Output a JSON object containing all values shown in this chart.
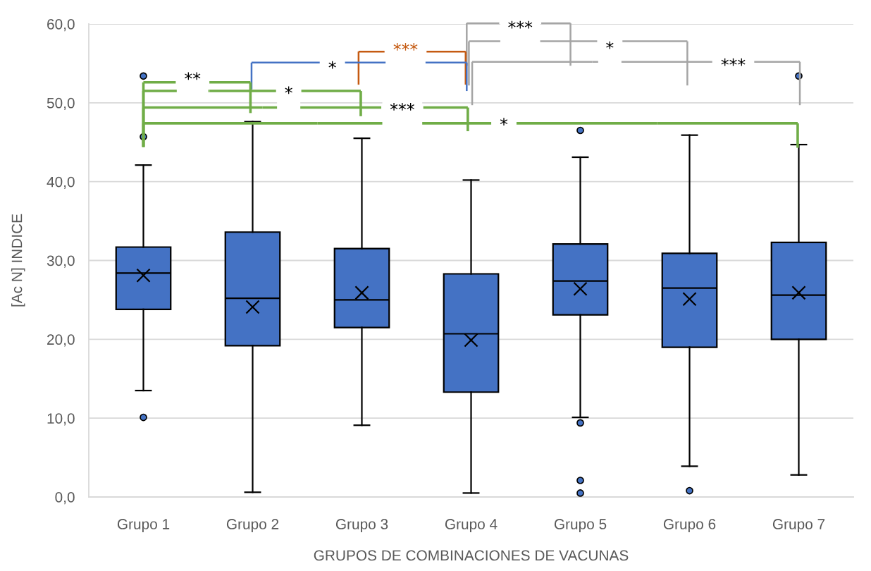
{
  "chart_data": {
    "type": "box",
    "xlabel": "GRUPOS DE COMBINACIONES DE VACUNAS",
    "ylabel": "[Ac N] INDICE",
    "categories": [
      "Grupo 1",
      "Grupo 2",
      "Grupo 3",
      "Grupo 4",
      "Grupo 5",
      "Grupo 6",
      "Grupo 7"
    ],
    "series": [
      {
        "color": "#4472c4",
        "boxes": [
          {
            "low": 13.5,
            "q1": 23.8,
            "median": 28.4,
            "q3": 31.7,
            "high": 42.1,
            "mean": 28.1,
            "outliers": [
              10.1,
              45.7,
              53.4
            ]
          },
          {
            "low": 0.6,
            "q1": 19.2,
            "median": 25.2,
            "q3": 33.6,
            "high": 47.6,
            "mean": 24.1
          },
          {
            "low": 9.1,
            "q1": 21.5,
            "median": 25.0,
            "q3": 31.5,
            "high": 45.5,
            "mean": 25.9
          },
          {
            "low": 0.5,
            "q1": 13.3,
            "median": 20.7,
            "q3": 28.3,
            "high": 40.2,
            "mean": 19.9
          },
          {
            "low": 10.1,
            "q1": 23.1,
            "median": 27.4,
            "q3": 32.1,
            "high": 43.1,
            "mean": 26.4,
            "outliers": [
              46.5,
              9.4,
              2.1,
              0.5
            ]
          },
          {
            "low": 3.9,
            "q1": 19.0,
            "median": 26.5,
            "q3": 30.9,
            "high": 45.9,
            "mean": 25.1,
            "outliers": [
              0.8
            ]
          },
          {
            "low": 2.8,
            "q1": 20.0,
            "median": 25.6,
            "q3": 32.3,
            "high": 44.7,
            "mean": 25.9,
            "outliers": [
              53.4
            ]
          }
        ]
      }
    ],
    "ylim": [
      0,
      60
    ],
    "yticks": [
      {
        "value": 0,
        "label": "0,0"
      },
      {
        "value": 10,
        "label": "10,0"
      },
      {
        "value": 20,
        "label": "20,0"
      },
      {
        "value": 30,
        "label": "30,0"
      },
      {
        "value": 40,
        "label": "40,0"
      },
      {
        "value": 50,
        "label": "50,0"
      },
      {
        "value": 60,
        "label": "60,0"
      }
    ],
    "grid": "y",
    "annotations": [
      "***",
      "***",
      "*",
      "*",
      "***",
      "**",
      "*",
      "***",
      "*"
    ]
  }
}
